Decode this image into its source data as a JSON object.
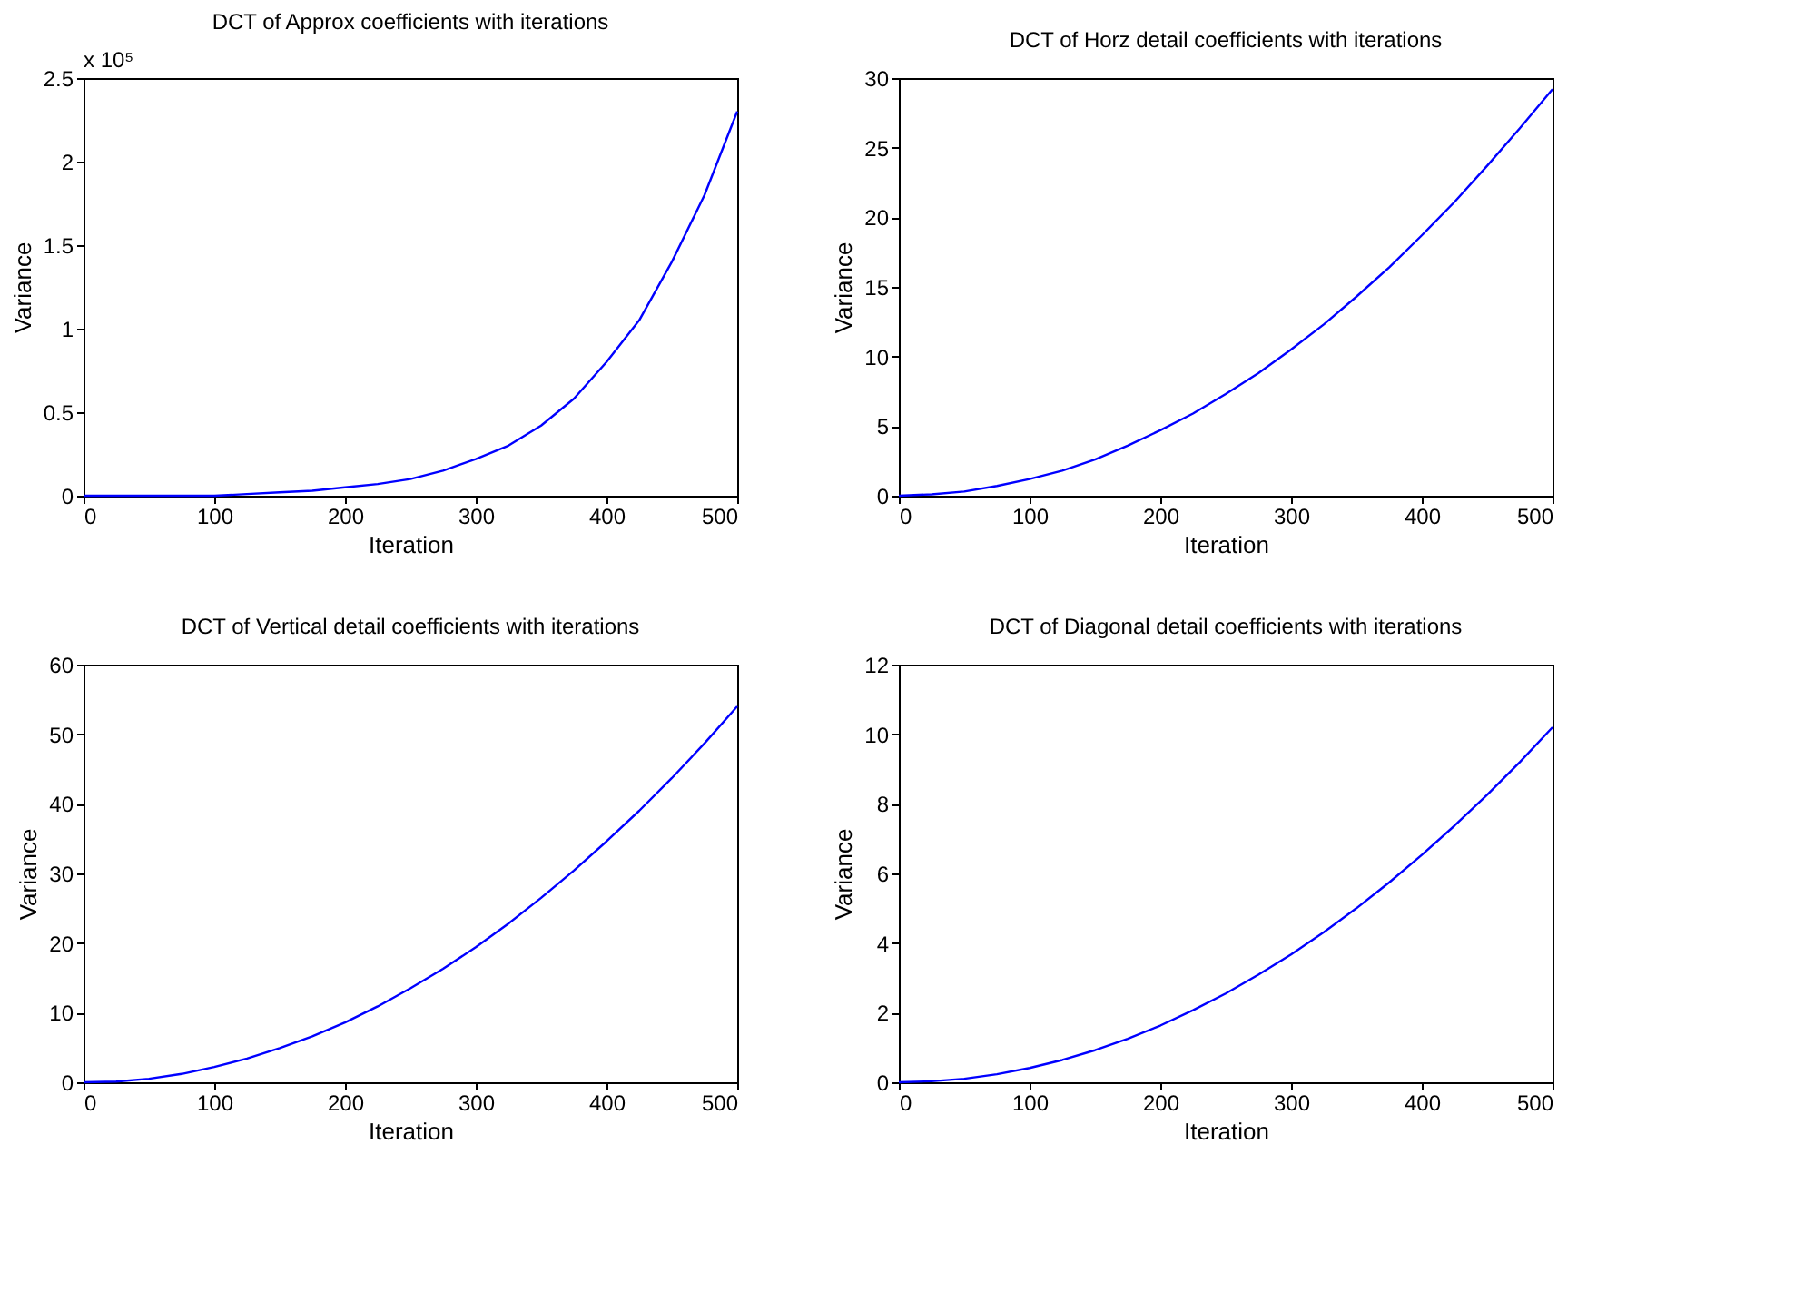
{
  "chart_data": [
    {
      "type": "line",
      "title": "DCT of Approx coefficients with iterations",
      "xlabel": "Iteration",
      "ylabel": "Variance",
      "annotations": [
        "x 10⁵"
      ],
      "x": [
        0,
        25,
        50,
        75,
        100,
        125,
        150,
        175,
        200,
        225,
        250,
        275,
        300,
        325,
        350,
        375,
        400,
        425,
        450,
        475,
        500
      ],
      "series": [
        {
          "color": "#0000ff",
          "values": [
            0,
            0,
            0,
            0,
            0,
            0.01,
            0.02,
            0.03,
            0.05,
            0.07,
            0.1,
            0.15,
            0.22,
            0.3,
            0.42,
            0.58,
            0.8,
            1.05,
            1.4,
            1.8,
            2.3
          ]
        }
      ],
      "xlim": [
        0,
        500
      ],
      "xticks": [
        0,
        100,
        200,
        300,
        400,
        500
      ],
      "ylim": [
        0,
        2.5
      ],
      "yticks": [
        0,
        0.5,
        1,
        1.5,
        2,
        2.5
      ],
      "grid": false
    },
    {
      "type": "line",
      "title": "DCT of Horz detail coefficients with iterations",
      "xlabel": "Iteration",
      "ylabel": "Variance",
      "x": [
        0,
        25,
        50,
        75,
        100,
        125,
        150,
        175,
        200,
        225,
        250,
        275,
        300,
        325,
        350,
        375,
        400,
        425,
        450,
        475,
        500
      ],
      "series": [
        {
          "color": "#0000ff",
          "values": [
            0,
            0.1,
            0.3,
            0.7,
            1.2,
            1.8,
            2.6,
            3.6,
            4.7,
            5.9,
            7.3,
            8.8,
            10.5,
            12.3,
            14.3,
            16.4,
            18.7,
            21.1,
            23.7,
            26.4,
            29.2
          ]
        }
      ],
      "xlim": [
        0,
        500
      ],
      "xticks": [
        0,
        100,
        200,
        300,
        400,
        500
      ],
      "ylim": [
        0,
        30
      ],
      "yticks": [
        0,
        5,
        10,
        15,
        20,
        25,
        30
      ],
      "grid": false
    },
    {
      "type": "line",
      "title": "DCT of Vertical detail coefficients with iterations",
      "xlabel": "Iteration",
      "ylabel": "Variance",
      "x": [
        0,
        25,
        50,
        75,
        100,
        125,
        150,
        175,
        200,
        225,
        250,
        275,
        300,
        325,
        350,
        375,
        400,
        425,
        450,
        475,
        500
      ],
      "series": [
        {
          "color": "#0000ff",
          "values": [
            0,
            0.1,
            0.5,
            1.2,
            2.2,
            3.4,
            4.9,
            6.6,
            8.6,
            10.9,
            13.5,
            16.3,
            19.4,
            22.8,
            26.5,
            30.4,
            34.6,
            39,
            43.7,
            48.7,
            54
          ]
        }
      ],
      "xlim": [
        0,
        500
      ],
      "xticks": [
        0,
        100,
        200,
        300,
        400,
        500
      ],
      "ylim": [
        0,
        60
      ],
      "yticks": [
        0,
        10,
        20,
        30,
        40,
        50,
        60
      ],
      "grid": false
    },
    {
      "type": "line",
      "title": "DCT of Diagonal detail coefficients with iterations",
      "xlabel": "Iteration",
      "ylabel": "Variance",
      "x": [
        0,
        25,
        50,
        75,
        100,
        125,
        150,
        175,
        200,
        225,
        250,
        275,
        300,
        325,
        350,
        375,
        400,
        425,
        450,
        475,
        500
      ],
      "series": [
        {
          "color": "#0000ff",
          "values": [
            0,
            0.03,
            0.1,
            0.23,
            0.41,
            0.64,
            0.92,
            1.25,
            1.63,
            2.07,
            2.55,
            3.09,
            3.67,
            4.31,
            5,
            5.74,
            6.53,
            7.37,
            8.26,
            9.2,
            10.2
          ]
        }
      ],
      "xlim": [
        0,
        500
      ],
      "xticks": [
        0,
        100,
        200,
        300,
        400,
        500
      ],
      "ylim": [
        0,
        12
      ],
      "yticks": [
        0,
        2,
        4,
        6,
        8,
        10,
        12
      ],
      "grid": false
    }
  ]
}
